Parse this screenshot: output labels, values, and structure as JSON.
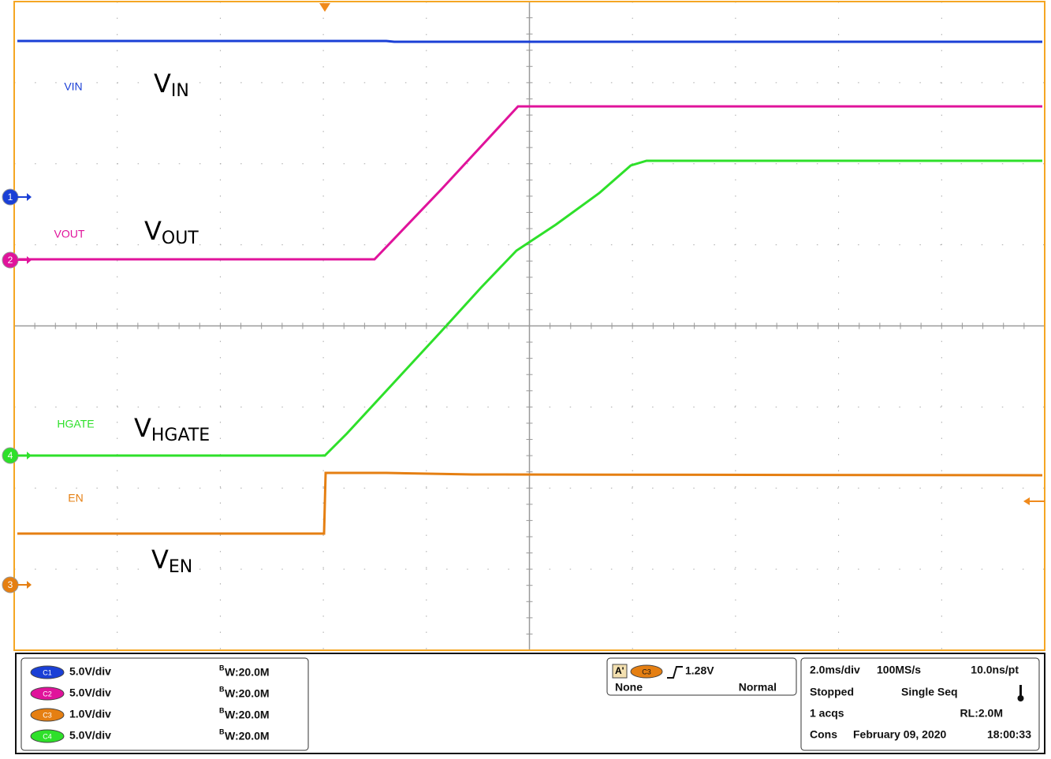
{
  "waveform_labels": [
    {
      "small": "VIN",
      "main": "V",
      "sub": "IN"
    },
    {
      "small": "VOUT",
      "main": "V",
      "sub": "OUT"
    },
    {
      "small": "HGATE",
      "main": "V",
      "sub": "HGATE"
    },
    {
      "small": "EN",
      "main": "V",
      "sub": "EN"
    }
  ],
  "channel_markers": [
    "1",
    "2",
    "4",
    "3"
  ],
  "channels": [
    {
      "name": "C1",
      "scale": "5.0V/div",
      "bw_prefix": "B",
      "bw": "W:20.0M"
    },
    {
      "name": "C2",
      "scale": "5.0V/div",
      "bw_prefix": "B",
      "bw": "W:20.0M"
    },
    {
      "name": "C3",
      "scale": "1.0V/div",
      "bw_prefix": "B",
      "bw": "W:20.0M"
    },
    {
      "name": "C4",
      "scale": "5.0V/div",
      "bw_prefix": "B",
      "bw": "W:20.0M"
    }
  ],
  "trigger": {
    "mode_tag": "A'",
    "source": "C3",
    "level": "1.28V",
    "coupling": "None",
    "mode": "Normal"
  },
  "timebase": {
    "scale": "2.0ms/div",
    "rate": "100MS/s",
    "resolution": "10.0ns/pt",
    "state": "Stopped",
    "sequence": "Single Seq",
    "acquisitions": "1 acqs",
    "record_length": "RL:2.0M",
    "display": "Cons",
    "date": "February 09, 2020",
    "time": "18:00:33"
  }
}
